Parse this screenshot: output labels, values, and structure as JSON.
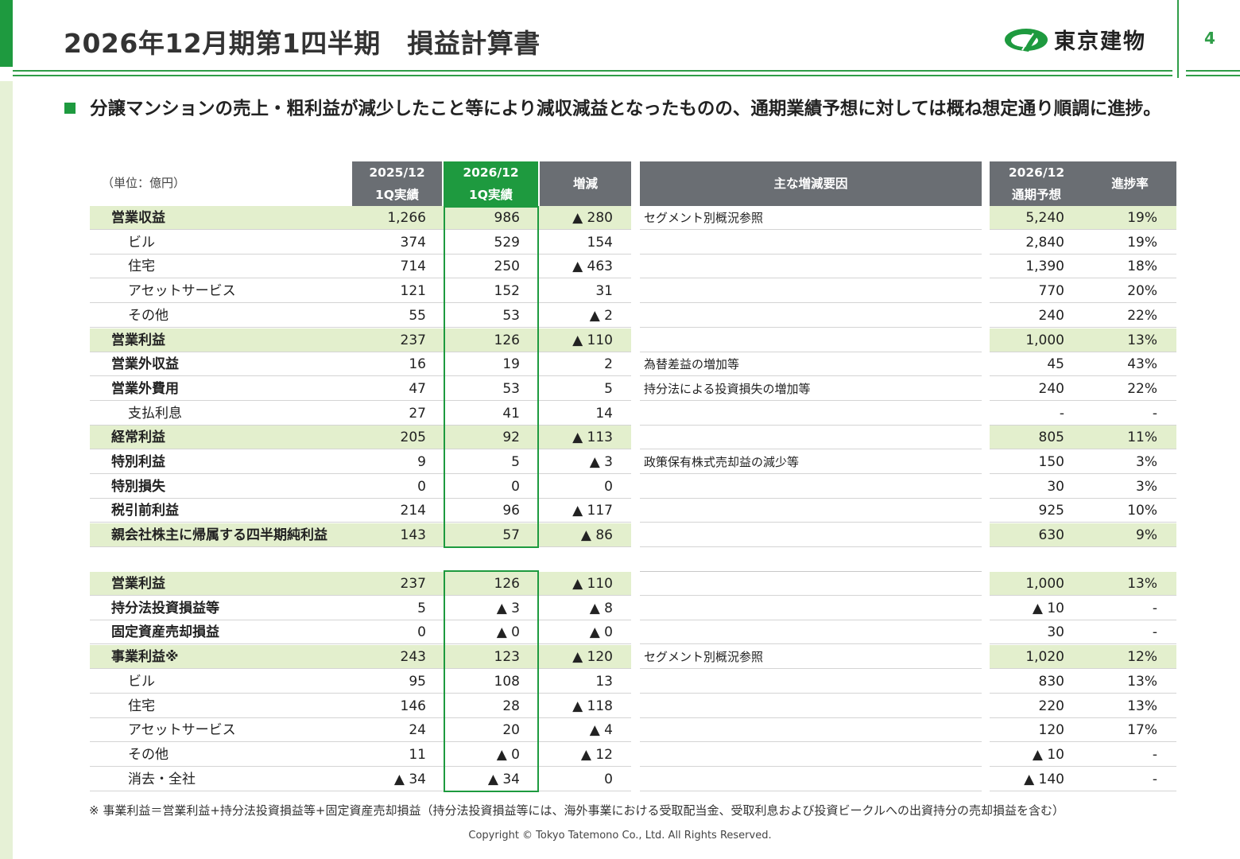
{
  "page": {
    "title": "2026年12月期第1四半期　損益計算書",
    "page_number": "4",
    "logo_text": "東京建物",
    "summary": "分譲マンションの売上・粗利益が減少したこと等により減収減益となったものの、通期業績予想に対しては概ね想定通り順調に進捗。",
    "unit": "（単位：億円）",
    "footnote": "※ 事業利益＝営業利益+持分法投資損益等+固定資産売却損益（持分法投資損益等には、海外事業における受取配当金、受取利息および投資ビークルへの出資持分の売却損益を含む）",
    "copyright": "Copyright © Tokyo Tatemono Co., Ltd. All Rights Reserved."
  },
  "colors": {
    "brand_green": "#1e9a3f",
    "highlight_row": "#e3efcd",
    "header_gray": "#6a6e73"
  },
  "table": {
    "headers": {
      "prev": [
        "2025/12",
        "1Q実績"
      ],
      "curr": [
        "2026/12",
        "1Q実績"
      ],
      "diff": "増減",
      "reasons": "主な増減要因",
      "forecast": [
        "2026/12",
        "通期予想"
      ],
      "progress": "進捗率"
    },
    "upper_rows": [
      {
        "label": "営業収益",
        "level": 0,
        "hl": true,
        "prev": "1,266",
        "curr": "986",
        "diff": "▲ 280",
        "reason": "セグメント別概況参照",
        "forecast": "5,240",
        "progress": "19%"
      },
      {
        "label": "ビル",
        "level": 1,
        "hl": false,
        "prev": "374",
        "curr": "529",
        "diff": "154",
        "reason": "",
        "forecast": "2,840",
        "progress": "19%"
      },
      {
        "label": "住宅",
        "level": 1,
        "hl": false,
        "prev": "714",
        "curr": "250",
        "diff": "▲ 463",
        "reason": "",
        "forecast": "1,390",
        "progress": "18%"
      },
      {
        "label": "アセットサービス",
        "level": 1,
        "hl": false,
        "prev": "121",
        "curr": "152",
        "diff": "31",
        "reason": "",
        "forecast": "770",
        "progress": "20%"
      },
      {
        "label": "その他",
        "level": 1,
        "hl": false,
        "prev": "55",
        "curr": "53",
        "diff": "▲ 2",
        "reason": "",
        "forecast": "240",
        "progress": "22%"
      },
      {
        "label": "営業利益",
        "level": 0,
        "hl": true,
        "prev": "237",
        "curr": "126",
        "diff": "▲ 110",
        "reason": "",
        "forecast": "1,000",
        "progress": "13%"
      },
      {
        "label": "営業外収益",
        "level": 0,
        "hl": false,
        "prev": "16",
        "curr": "19",
        "diff": "2",
        "reason": "為替差益の増加等",
        "forecast": "45",
        "progress": "43%"
      },
      {
        "label": "営業外費用",
        "level": 0,
        "hl": false,
        "prev": "47",
        "curr": "53",
        "diff": "5",
        "reason": "持分法による投資損失の増加等",
        "forecast": "240",
        "progress": "22%"
      },
      {
        "label": "支払利息",
        "level": 1,
        "hl": false,
        "prev": "27",
        "curr": "41",
        "diff": "14",
        "reason": "",
        "forecast": "-",
        "progress": "-"
      },
      {
        "label": "経常利益",
        "level": 0,
        "hl": true,
        "prev": "205",
        "curr": "92",
        "diff": "▲ 113",
        "reason": "",
        "forecast": "805",
        "progress": "11%"
      },
      {
        "label": "特別利益",
        "level": 0,
        "hl": false,
        "prev": "9",
        "curr": "5",
        "diff": "▲ 3",
        "reason": "政策保有株式売却益の減少等",
        "forecast": "150",
        "progress": "3%"
      },
      {
        "label": "特別損失",
        "level": 0,
        "hl": false,
        "prev": "0",
        "curr": "0",
        "diff": "0",
        "reason": "",
        "forecast": "30",
        "progress": "3%"
      },
      {
        "label": "税引前利益",
        "level": 0,
        "hl": false,
        "prev": "214",
        "curr": "96",
        "diff": "▲ 117",
        "reason": "",
        "forecast": "925",
        "progress": "10%"
      },
      {
        "label": "親会社株主に帰属する四半期純利益",
        "level": 0,
        "hl": true,
        "prev": "143",
        "curr": "57",
        "diff": "▲ 86",
        "reason": "",
        "forecast": "630",
        "progress": "9%"
      }
    ],
    "lower_rows": [
      {
        "label": "営業利益",
        "level": 0,
        "hl": true,
        "prev": "237",
        "curr": "126",
        "diff": "▲ 110",
        "reason": "",
        "forecast": "1,000",
        "progress": "13%"
      },
      {
        "label": "持分法投資損益等",
        "level": 0,
        "hl": false,
        "prev": "5",
        "curr": "▲ 3",
        "diff": "▲ 8",
        "reason": "",
        "forecast": "▲ 10",
        "progress": "-"
      },
      {
        "label": "固定資産売却損益",
        "level": 0,
        "hl": false,
        "prev": "0",
        "curr": "▲ 0",
        "diff": "▲ 0",
        "reason": "",
        "forecast": "30",
        "progress": "-"
      },
      {
        "label": "事業利益※",
        "level": 0,
        "hl": true,
        "prev": "243",
        "curr": "123",
        "diff": "▲ 120",
        "reason": "セグメント別概況参照",
        "forecast": "1,020",
        "progress": "12%"
      },
      {
        "label": "ビル",
        "level": 1,
        "hl": false,
        "prev": "95",
        "curr": "108",
        "diff": "13",
        "reason": "",
        "forecast": "830",
        "progress": "13%"
      },
      {
        "label": "住宅",
        "level": 1,
        "hl": false,
        "prev": "146",
        "curr": "28",
        "diff": "▲ 118",
        "reason": "",
        "forecast": "220",
        "progress": "13%"
      },
      {
        "label": "アセットサービス",
        "level": 1,
        "hl": false,
        "prev": "24",
        "curr": "20",
        "diff": "▲ 4",
        "reason": "",
        "forecast": "120",
        "progress": "17%"
      },
      {
        "label": "その他",
        "level": 1,
        "hl": false,
        "prev": "11",
        "curr": "▲ 0",
        "diff": "▲ 12",
        "reason": "",
        "forecast": "▲ 10",
        "progress": "-"
      },
      {
        "label": "消去・全社",
        "level": 1,
        "hl": false,
        "prev": "▲ 34",
        "curr": "▲ 34",
        "diff": "0",
        "reason": "",
        "forecast": "▲ 140",
        "progress": "-"
      }
    ]
  }
}
